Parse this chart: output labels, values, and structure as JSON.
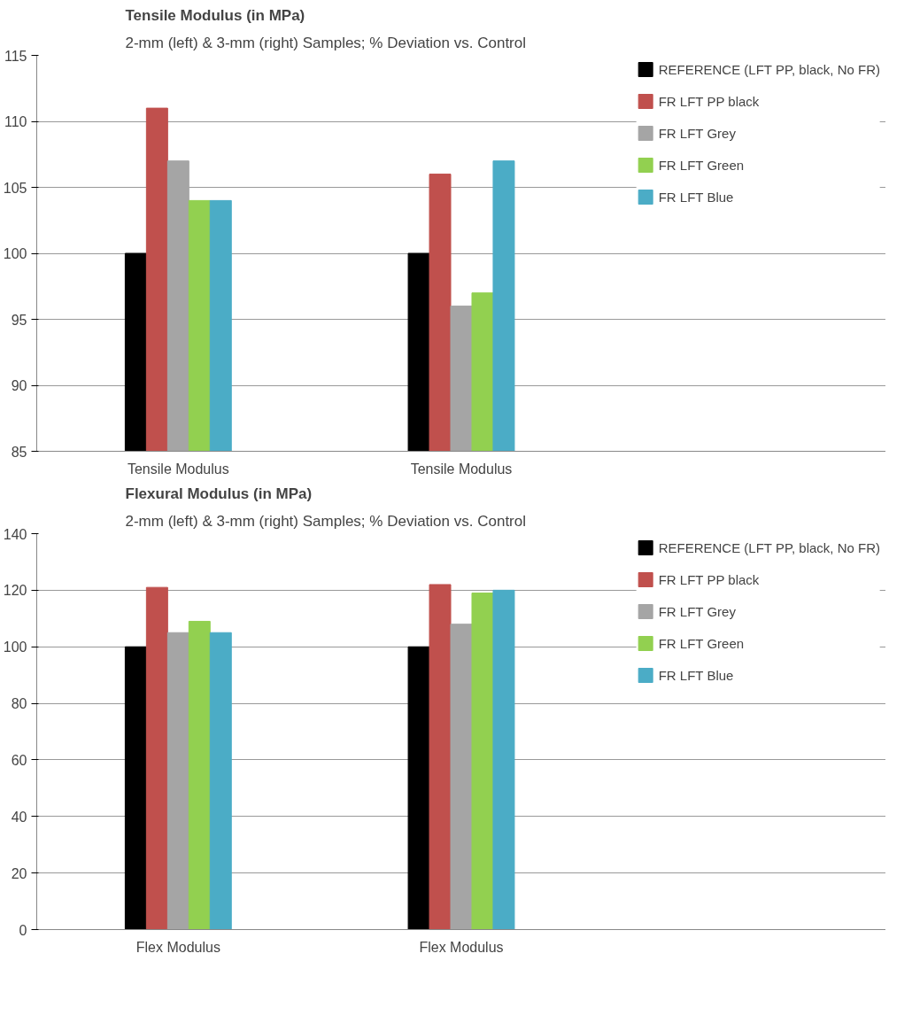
{
  "chart_data": [
    {
      "type": "bar",
      "title": "Tensile Modulus (in MPa)",
      "subtitle": "2-mm (left) & 3-mm (right) Samples; % Deviation vs. Control",
      "categories": [
        "Tensile Modulus",
        "Tensile Modulus"
      ],
      "ylim": [
        85,
        115
      ],
      "yticks": [
        85,
        90,
        95,
        100,
        105,
        110,
        115
      ],
      "grid": "y",
      "legend": "right",
      "series": [
        {
          "name": "REFERENCE (LFT PP, black, No FR)",
          "color": "#000000",
          "values": [
            100,
            100
          ]
        },
        {
          "name": "FR LFT PP black",
          "color": "#c0504d",
          "values": [
            111,
            106
          ]
        },
        {
          "name": "FR LFT Grey",
          "color": "#a5a5a5",
          "values": [
            107,
            96
          ]
        },
        {
          "name": "FR LFT Green",
          "color": "#92d050",
          "values": [
            104,
            97
          ]
        },
        {
          "name": "FR LFT Blue",
          "color": "#4bacc6",
          "values": [
            104,
            107
          ]
        }
      ]
    },
    {
      "type": "bar",
      "title": "Flexural Modulus (in MPa)",
      "subtitle": "2-mm (left) & 3-mm (right) Samples; % Deviation vs. Control",
      "categories": [
        "Flex Modulus",
        "Flex Modulus"
      ],
      "ylim": [
        0,
        140
      ],
      "yticks": [
        0,
        20,
        40,
        60,
        80,
        100,
        120,
        140
      ],
      "grid": "y",
      "legend": "right",
      "series": [
        {
          "name": "REFERENCE (LFT PP, black, No FR)",
          "color": "#000000",
          "values": [
            100,
            100
          ]
        },
        {
          "name": "FR LFT PP black",
          "color": "#c0504d",
          "values": [
            121,
            122
          ]
        },
        {
          "name": "FR LFT Grey",
          "color": "#a5a5a5",
          "values": [
            105,
            108
          ]
        },
        {
          "name": "FR LFT Green",
          "color": "#92d050",
          "values": [
            109,
            119
          ]
        },
        {
          "name": "FR LFT Blue",
          "color": "#4bacc6",
          "values": [
            105,
            120
          ]
        }
      ]
    }
  ]
}
